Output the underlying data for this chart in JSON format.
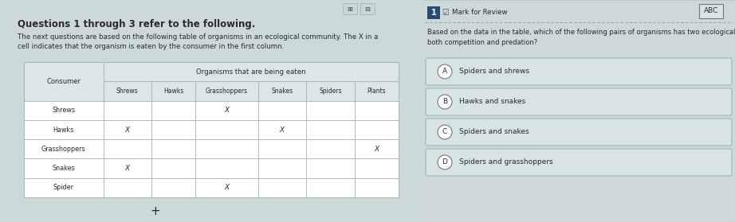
{
  "title_left": "Questions 1 through 3 refer to the following.",
  "subtitle_left": "The next questions are based on the following table of organisms in an ecological community. The X in a\ncell indicates that the organism is eaten by the consumer in the first column.",
  "table_header_col": "Consumer",
  "table_header_group": "Organisms that are being eaten",
  "table_col_headers": [
    "Shrews",
    "Hawks",
    "Grasshoppers",
    "Snakes",
    "Spiders",
    "Plants"
  ],
  "table_rows": [
    [
      "Shrews",
      "",
      "",
      "X",
      "",
      "",
      ""
    ],
    [
      "Hawks",
      "X",
      "",
      "",
      "X",
      "",
      ""
    ],
    [
      "Grasshoppers",
      "",
      "",
      "",
      "",
      "",
      "X"
    ],
    [
      "Snakes",
      "X",
      "",
      "",
      "",
      "",
      ""
    ],
    [
      "Spider",
      "",
      "",
      "X",
      "",
      "",
      ""
    ]
  ],
  "question_number": "1",
  "mark_for_review": "Mark for Review",
  "abc_label": "ABC",
  "question_text": "Based on the data in the table, which of the following pairs of organisms has two ecological relationships,\nboth competition and predation?",
  "answer_options": [
    {
      "label": "A",
      "text": "Spiders and shrews"
    },
    {
      "label": "B",
      "text": "Hawks and snakes"
    },
    {
      "label": "C",
      "text": "Spiders and snakes"
    },
    {
      "label": "D",
      "text": "Spiders and grasshoppers"
    }
  ],
  "bg_color_left": "#ccd9d9",
  "bg_color_right": "#cdd8d8",
  "table_bg": "#e8efef",
  "table_header_bg": "#dce6e6",
  "border_color": "#9aafaf",
  "text_color": "#2a2a2a",
  "header_color": "#2a2a2a",
  "divider_color": "#8a9a9a",
  "answer_box_bg": "#d8e4e4",
  "answer_box_border": "#9aafaf",
  "num_badge_bg": "#2a4a7a",
  "abc_box_bg": "#d8e4e4"
}
